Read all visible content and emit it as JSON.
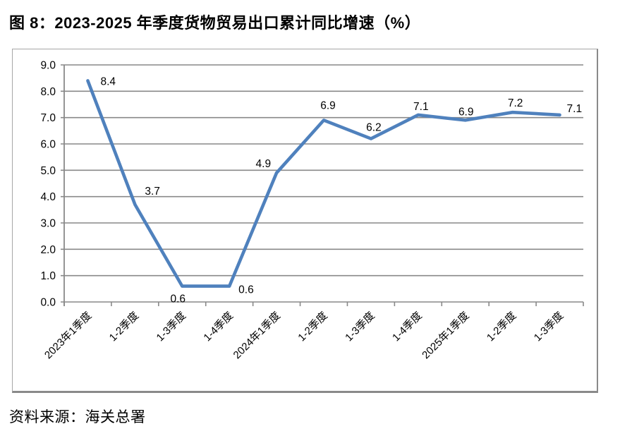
{
  "title": "图 8：2023-2025 年季度货物贸易出口累计同比增速（%）",
  "source": "资料来源：海关总署",
  "chart_data": {
    "type": "line",
    "title": "图 8：2023-2025 年季度货物贸易出口累计同比增速（%）",
    "categories": [
      "2023年1季度",
      "1-2季度",
      "1-3季度",
      "1-4季度",
      "2024年1季度",
      "1-2季度",
      "1-3季度",
      "1-4季度",
      "2025年1季度",
      "1-2季度",
      "1-3季度"
    ],
    "values": [
      8.4,
      3.7,
      0.6,
      0.6,
      4.9,
      6.9,
      6.2,
      7.1,
      6.9,
      7.2,
      7.1
    ],
    "data_labels": [
      "8.4",
      "3.7",
      "0.6",
      "0.6",
      "4.9",
      "6.9",
      "6.2",
      "7.1",
      "6.9",
      "7.2",
      "7.1"
    ],
    "xlabel": "",
    "ylabel": "",
    "ylim": [
      0,
      9
    ],
    "ytick_step": 1,
    "ytick_labels": [
      "0.0",
      "1.0",
      "2.0",
      "3.0",
      "4.0",
      "5.0",
      "6.0",
      "7.0",
      "8.0",
      "9.0"
    ],
    "grid": true,
    "legend": "none",
    "colors": {
      "line": "#4F81BD",
      "gridline": "#898989",
      "axis": "#898989",
      "text": "#000000"
    }
  }
}
